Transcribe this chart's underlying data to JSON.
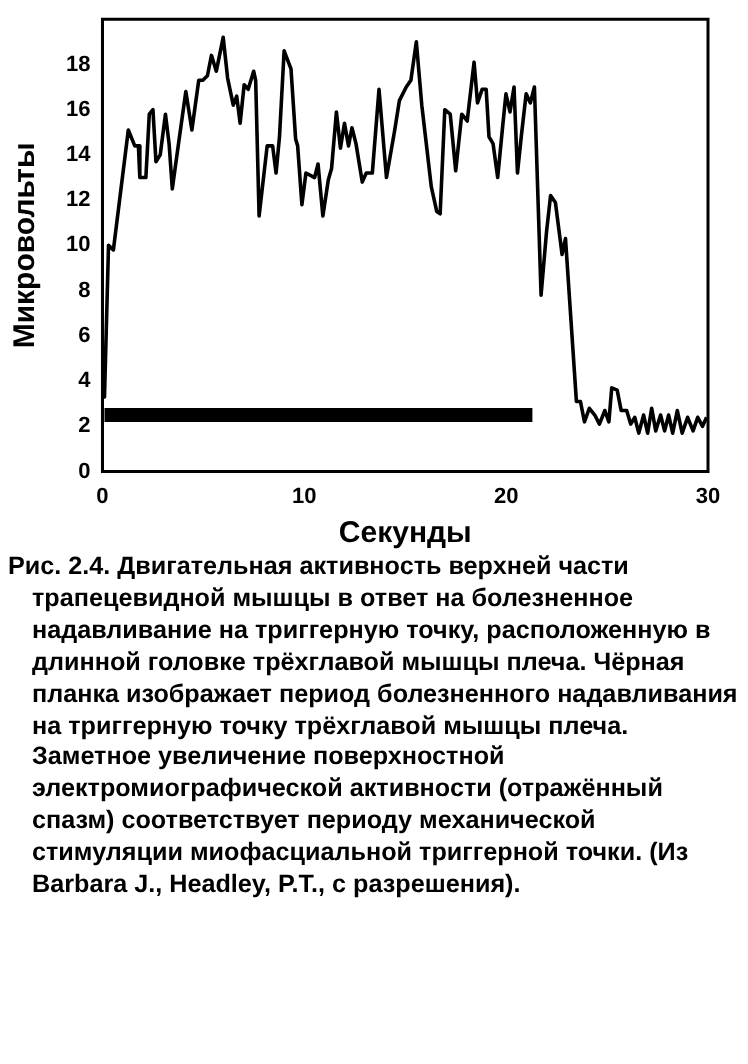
{
  "chart_data": {
    "type": "line",
    "xlabel": "Секунды",
    "ylabel": "Микровольты",
    "xlim": [
      0,
      30
    ],
    "xticks": [
      0,
      10,
      20,
      30
    ],
    "ylim": [
      0,
      20
    ],
    "yticks": [
      0,
      2,
      4,
      6,
      8,
      10,
      12,
      14,
      16,
      18
    ],
    "grid": false,
    "legend": false,
    "marker": "none",
    "line_style": "solid",
    "series": [
      {
        "color": "#000000",
        "x": [
          0,
          0.1,
          0.3,
          0.54,
          1.28,
          1.6,
          1.78,
          1.85,
          2.15,
          2.32,
          2.5,
          2.65,
          2.86,
          3.12,
          3.3,
          3.46,
          3.8,
          4.13,
          4.43,
          4.77,
          4.97,
          5.2,
          5.4,
          5.64,
          5.98,
          6.2,
          6.48,
          6.65,
          6.82,
          7.02,
          7.22,
          7.49,
          7.59,
          7.76,
          8.16,
          8.43,
          8.6,
          8.77,
          9.0,
          9.34,
          9.57,
          9.67,
          9.88,
          10.08,
          10.51,
          10.68,
          10.92,
          11.19,
          11.35,
          11.59,
          11.79,
          11.99,
          12.19,
          12.36,
          12.56,
          12.87,
          13.07,
          13.37,
          13.7,
          14.07,
          14.48,
          14.71,
          15.05,
          15.28,
          15.55,
          15.82,
          15.99,
          16.29,
          16.56,
          16.73,
          16.96,
          17.23,
          17.5,
          17.8,
          18.07,
          18.41,
          18.58,
          18.81,
          19.01,
          19.15,
          19.35,
          19.58,
          19.82,
          19.99,
          20.19,
          20.39,
          20.56,
          20.76,
          20.99,
          21.2,
          21.4,
          21.73,
          22.0,
          22.2,
          22.44,
          22.77,
          22.94,
          23.48,
          23.68,
          23.88,
          24.12,
          24.39,
          24.62,
          24.89,
          25.09,
          25.23,
          25.5,
          25.7,
          25.97,
          26.17,
          26.37,
          26.57,
          26.81,
          27.01,
          27.21,
          27.41,
          27.65,
          27.85,
          28.05,
          28.25,
          28.48,
          28.72,
          28.99,
          29.26,
          29.49,
          29.73,
          29.93
        ],
        "values": [
          4.0,
          3.3,
          10.0,
          9.8,
          15.1,
          14.4,
          14.4,
          13.0,
          13.0,
          15.8,
          16.0,
          13.7,
          14.0,
          15.8,
          14.5,
          12.5,
          14.7,
          16.8,
          15.1,
          17.3,
          17.3,
          17.5,
          18.4,
          17.7,
          19.2,
          17.4,
          16.2,
          16.6,
          15.4,
          17.1,
          16.9,
          17.7,
          17.3,
          11.3,
          14.4,
          14.4,
          13.2,
          14.8,
          18.6,
          17.8,
          14.7,
          14.4,
          11.8,
          13.2,
          13.0,
          13.6,
          11.3,
          12.9,
          13.4,
          15.9,
          14.3,
          15.4,
          14.4,
          15.2,
          14.5,
          12.8,
          13.2,
          13.2,
          16.9,
          13.0,
          15.1,
          16.4,
          17.0,
          17.3,
          19.0,
          16.2,
          14.9,
          12.6,
          11.5,
          11.4,
          16.0,
          15.8,
          13.3,
          15.8,
          15.5,
          18.1,
          16.3,
          16.9,
          16.9,
          14.8,
          14.5,
          13.0,
          15.2,
          16.7,
          15.9,
          17.0,
          13.2,
          14.9,
          16.7,
          16.3,
          17.0,
          7.8,
          10.6,
          12.2,
          11.9,
          9.6,
          10.3,
          3.1,
          3.1,
          2.2,
          2.8,
          2.5,
          2.1,
          2.7,
          2.2,
          3.7,
          3.6,
          2.7,
          2.7,
          2.1,
          2.4,
          1.7,
          2.5,
          1.7,
          2.8,
          1.8,
          2.5,
          1.8,
          2.5,
          1.7,
          2.7,
          1.7,
          2.4,
          1.8,
          2.4,
          2.0,
          2.4
        ]
      },
      {
        "color": "#000000",
        "x": [
          0.1,
          21.3
        ],
        "values": [
          2.5,
          2.5
        ]
      }
    ],
    "annotations": [
      "Рис. 2.4. Двигательная активность верхней части трапецевидной мышцы в ответ на болезненное надавливание на триггерную точку, расположенную в длинной головке трёхглавой мышцы плеча. Чёрная планка изображает период болезненного надавливания на триггерную точку трёхглавой мышцы плеча. Заметное увеличение поверхностной электромиографической активности (отражённый спазм) соответствует периоду механической стимуляции миофасциальной триггерной точки. (Из Barbara J., Headley, P.T., с разрешения)."
    ]
  }
}
